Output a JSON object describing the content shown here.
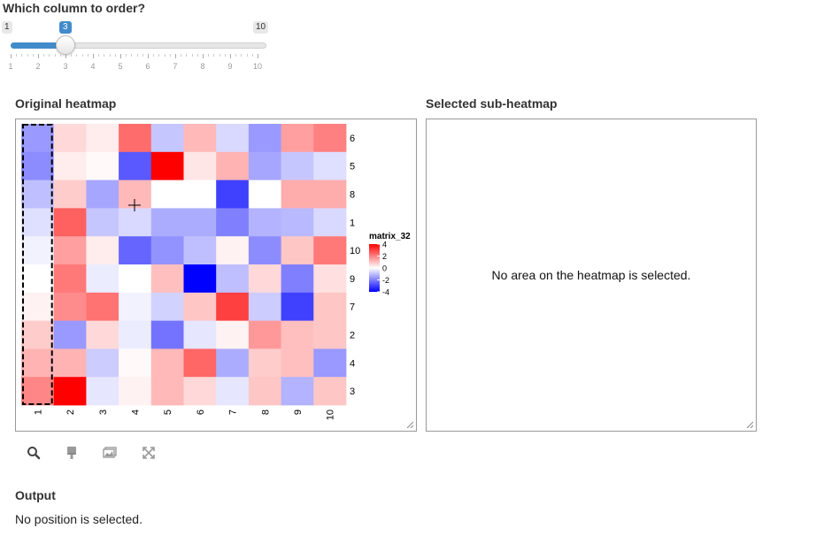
{
  "slider": {
    "title": "Which column to order?",
    "min_label": "1",
    "max_label": "10",
    "value": 3,
    "min": 1,
    "max": 10,
    "tick_labels": [
      "1",
      "2",
      "3",
      "4",
      "5",
      "6",
      "7",
      "8",
      "9",
      "10"
    ],
    "accent_color": "#428bca"
  },
  "original": {
    "title": "Original heatmap",
    "col_labels": [
      "1",
      "2",
      "3",
      "4",
      "5",
      "6",
      "7",
      "8",
      "9",
      "10"
    ],
    "row_labels": [
      "6",
      "5",
      "8",
      "1",
      "10",
      "9",
      "7",
      "2",
      "4",
      "3"
    ],
    "selected_column": "1",
    "matrix": [
      [
        -1.6,
        0.6,
        0.3,
        2.3,
        -0.9,
        1.1,
        -0.6,
        -1.6,
        1.5,
        2.0
      ],
      [
        -1.8,
        0.3,
        0.1,
        -2.6,
        4.3,
        0.4,
        1.2,
        -1.4,
        -0.9,
        -0.5
      ],
      [
        -1.0,
        0.8,
        -1.4,
        1.1,
        0.0,
        0.0,
        -3.0,
        0.0,
        1.3,
        1.3
      ],
      [
        -0.5,
        2.5,
        -0.9,
        -0.6,
        -1.3,
        -1.3,
        -2.0,
        -1.2,
        -1.1,
        -0.6
      ],
      [
        -0.2,
        1.5,
        0.3,
        -2.4,
        -1.7,
        -1.0,
        0.2,
        -1.8,
        0.9,
        2.1
      ],
      [
        0.0,
        2.1,
        -0.3,
        0.0,
        1.0,
        -4.5,
        -1.0,
        0.6,
        -2.0,
        0.5
      ],
      [
        0.2,
        1.8,
        2.2,
        -0.2,
        -0.7,
        0.9,
        3.0,
        -0.8,
        -3.0,
        0.9
      ],
      [
        0.8,
        -1.6,
        0.6,
        -0.3,
        -2.2,
        -0.4,
        0.2,
        1.6,
        1.0,
        0.9
      ],
      [
        1.2,
        1.2,
        -0.8,
        0.1,
        1.1,
        2.4,
        -1.3,
        0.8,
        1.0,
        -1.6
      ],
      [
        1.9,
        4.3,
        -0.4,
        0.2,
        1.1,
        0.6,
        -0.4,
        0.9,
        -1.2,
        0.9
      ]
    ],
    "legend": {
      "title": "matrix_32",
      "tick_labels": [
        "4",
        "2",
        "0",
        "-2",
        "-4"
      ],
      "tick_values": [
        4,
        2,
        0,
        -2,
        -4
      ],
      "low_color": "#0000ff",
      "mid_color": "#ffffff",
      "high_color": "#ff0000"
    }
  },
  "sub": {
    "title": "Selected sub-heatmap",
    "message": "No area on the heatmap is selected."
  },
  "toolbar": {
    "items": [
      "search-icon",
      "brush-icon",
      "image-icon",
      "expand-icon"
    ]
  },
  "output": {
    "title": "Output",
    "text": "No position is selected."
  }
}
